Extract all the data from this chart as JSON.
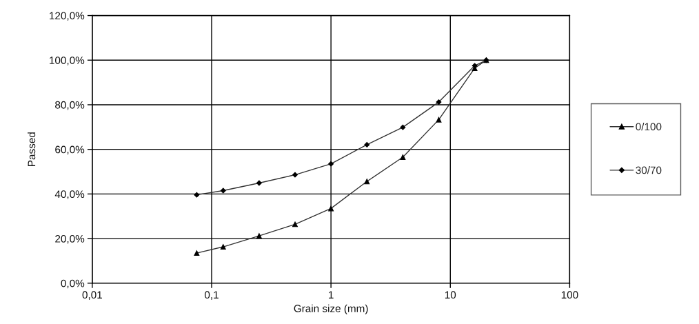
{
  "chart_data": {
    "type": "line",
    "xlabel": "Grain size (mm)",
    "ylabel": "Passed",
    "log": "x",
    "xlim": [
      0.01,
      100
    ],
    "xticks": [
      {
        "value": 0.01,
        "label": "0,01"
      },
      {
        "value": 0.1,
        "label": "0,1"
      },
      1,
      10,
      100
    ],
    "ylim": [
      0,
      120
    ],
    "yticks": [
      {
        "value": 0,
        "label": "0,0%"
      },
      {
        "value": 20,
        "label": "20,0%"
      },
      {
        "value": 40,
        "label": "40,0%"
      },
      {
        "value": 60,
        "label": "60,0%"
      },
      {
        "value": 80,
        "label": "80,0%"
      },
      {
        "value": 100,
        "label": "100,0%"
      },
      {
        "value": 120,
        "label": "120,0%"
      }
    ],
    "grid": true,
    "legend": "right",
    "line_style": "solid",
    "x": [
      0.075,
      0.125,
      0.25,
      0.5,
      1,
      2,
      4,
      8,
      16,
      20
    ],
    "series": [
      {
        "name": "0/100",
        "color": "#333333",
        "marker": "triangle",
        "values": [
          13.5,
          16.3,
          21.2,
          26.4,
          33.5,
          45.6,
          56.5,
          73.3,
          96.4,
          100
        ]
      },
      {
        "name": "30/70",
        "color": "#333333",
        "marker": "diamond",
        "values": [
          39.6,
          41.5,
          44.9,
          48.6,
          53.5,
          62.1,
          69.9,
          81.2,
          97.5,
          100
        ]
      }
    ]
  }
}
